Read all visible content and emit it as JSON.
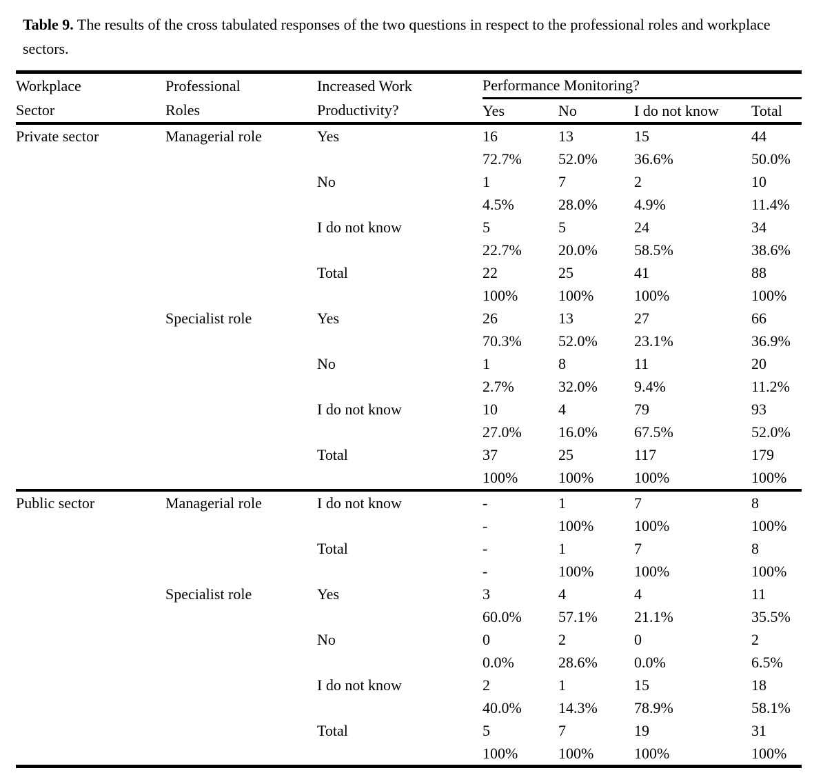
{
  "caption": {
    "label": "Table 9.",
    "text": "The results of the cross tabulated responses of the two questions in respect to the professional roles and workplace sectors."
  },
  "table": {
    "headers": {
      "workplace_line1": "Workplace",
      "workplace_line2": "Sector",
      "professional_line1": "Professional",
      "professional_line2": "Roles",
      "productivity_line1": "Increased Work",
      "productivity_line2": "Productivity?",
      "performance_span": "Performance Monitoring?",
      "sub": [
        "Yes",
        "No",
        "I do not know",
        "Total"
      ]
    },
    "text_color": "#000000",
    "background_color": "#ffffff",
    "border_color": "#000000"
  },
  "chart_data": {
    "type": "table",
    "title": "Table 9. The results of the cross tabulated responses of the two questions in respect to the professional roles and workplace sectors.",
    "columns": [
      "Workplace Sector",
      "Professional Roles",
      "Increased Work Productivity?",
      "Yes",
      "No",
      "I do not know",
      "Total"
    ],
    "sections": [
      {
        "sector": "Private sector",
        "roles": [
          {
            "role": "Managerial role",
            "rows": [
              {
                "label": "Yes",
                "counts": [
                  "16",
                  "13",
                  "15",
                  "44"
                ],
                "percents": [
                  "72.7%",
                  "52.0%",
                  "36.6%",
                  "50.0%"
                ]
              },
              {
                "label": "No",
                "counts": [
                  "1",
                  "7",
                  "2",
                  "10"
                ],
                "percents": [
                  "4.5%",
                  "28.0%",
                  "4.9%",
                  "11.4%"
                ]
              },
              {
                "label": "I do not know",
                "counts": [
                  "5",
                  "5",
                  "24",
                  "34"
                ],
                "percents": [
                  "22.7%",
                  "20.0%",
                  "58.5%",
                  "38.6%"
                ]
              },
              {
                "label": "Total",
                "counts": [
                  "22",
                  "25",
                  "41",
                  "88"
                ],
                "percents": [
                  "100%",
                  "100%",
                  "100%",
                  "100%"
                ]
              }
            ]
          },
          {
            "role": "Specialist role",
            "rows": [
              {
                "label": "Yes",
                "counts": [
                  "26",
                  "13",
                  "27",
                  "66"
                ],
                "percents": [
                  "70.3%",
                  "52.0%",
                  "23.1%",
                  "36.9%"
                ]
              },
              {
                "label": "No",
                "counts": [
                  "1",
                  "8",
                  "11",
                  "20"
                ],
                "percents": [
                  "2.7%",
                  "32.0%",
                  "9.4%",
                  "11.2%"
                ]
              },
              {
                "label": "I do not know",
                "counts": [
                  "10",
                  "4",
                  "79",
                  "93"
                ],
                "percents": [
                  "27.0%",
                  "16.0%",
                  "67.5%",
                  "52.0%"
                ]
              },
              {
                "label": "Total",
                "counts": [
                  "37",
                  "25",
                  "117",
                  "179"
                ],
                "percents": [
                  "100%",
                  "100%",
                  "100%",
                  "100%"
                ]
              }
            ]
          }
        ]
      },
      {
        "sector": "Public sector",
        "roles": [
          {
            "role": "Managerial role",
            "rows": [
              {
                "label": "I do not know",
                "counts": [
                  "-",
                  "1",
                  "7",
                  "8"
                ],
                "percents": [
                  "-",
                  "100%",
                  "100%",
                  "100%"
                ]
              },
              {
                "label": "Total",
                "counts": [
                  "-",
                  "1",
                  "7",
                  "8"
                ],
                "percents": [
                  "-",
                  "100%",
                  "100%",
                  "100%"
                ]
              }
            ]
          },
          {
            "role": "Specialist role",
            "rows": [
              {
                "label": "Yes",
                "counts": [
                  "3",
                  "4",
                  "4",
                  "11"
                ],
                "percents": [
                  "60.0%",
                  "57.1%",
                  "21.1%",
                  "35.5%"
                ]
              },
              {
                "label": "No",
                "counts": [
                  "0",
                  "2",
                  "0",
                  "2"
                ],
                "percents": [
                  "0.0%",
                  "28.6%",
                  "0.0%",
                  "6.5%"
                ]
              },
              {
                "label": "I do not know",
                "counts": [
                  "2",
                  "1",
                  "15",
                  "18"
                ],
                "percents": [
                  "40.0%",
                  "14.3%",
                  "78.9%",
                  "58.1%"
                ]
              },
              {
                "label": "Total",
                "counts": [
                  "5",
                  "7",
                  "19",
                  "31"
                ],
                "percents": [
                  "100%",
                  "100%",
                  "100%",
                  "100%"
                ]
              }
            ]
          }
        ]
      }
    ]
  }
}
